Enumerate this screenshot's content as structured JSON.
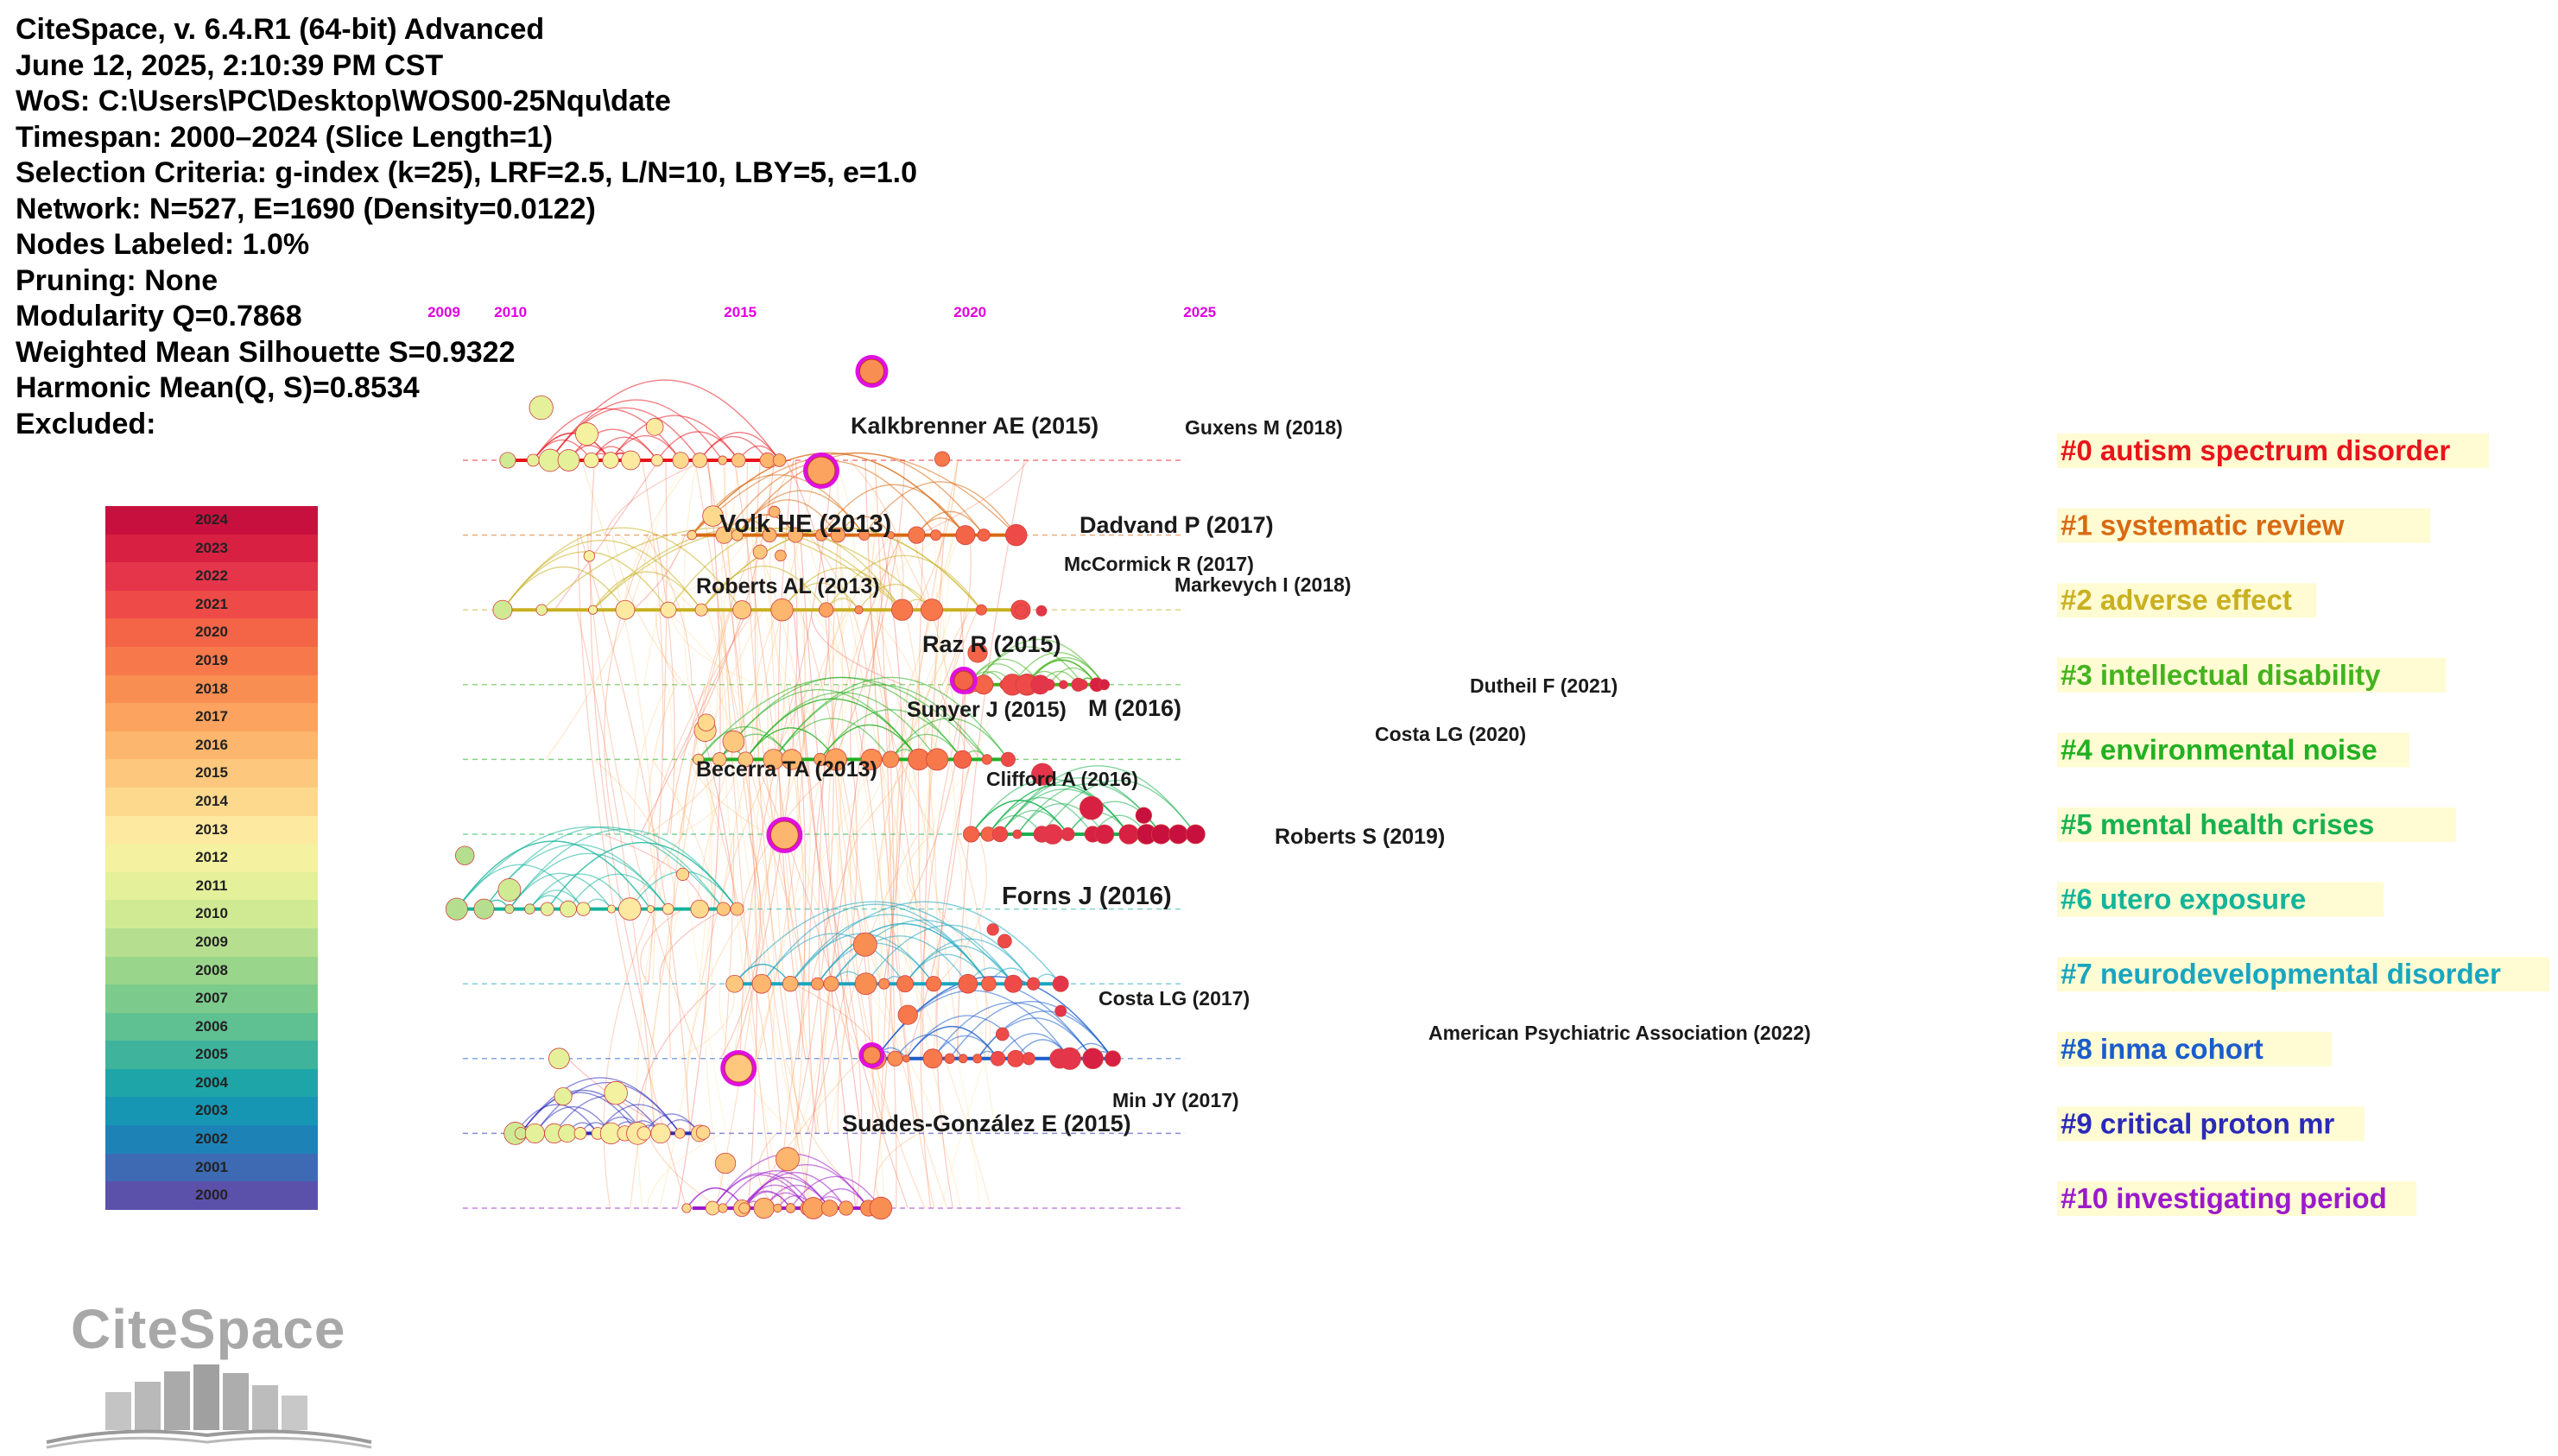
{
  "header": {
    "lines": [
      "CiteSpace, v. 6.4.R1 (64-bit) Advanced",
      "June 12, 2025, 2:10:39 PM CST",
      "WoS: C:\\Users\\PC\\Desktop\\WOS00-25Nqu\\date",
      "Timespan: 2000–2024 (Slice Length=1)",
      "Selection Criteria: g-index (k=25), LRF=2.5, L/N=10, LBY=5, e=1.0",
      "Network: N=527, E=1690 (Density=0.0122)",
      "Nodes Labeled: 1.0%",
      "Pruning: None",
      "Modularity Q=0.7868",
      "Weighted Mean Silhouette S=0.9322",
      "Harmonic Mean(Q, S)=0.8534",
      "Excluded:"
    ]
  },
  "timeline": {
    "year_ticks": [
      "2009",
      "2010",
      "2015",
      "2020",
      "2025"
    ],
    "year_range": [
      2009,
      2025
    ],
    "clusters": [
      {
        "id": "#0",
        "label": "#0 autism spectrum disorder",
        "color": "#e8141b",
        "start": 2010,
        "end": 2016
      },
      {
        "id": "#1",
        "label": "#1 systematic review",
        "color": "#d86a12",
        "start": 2014,
        "end": 2021
      },
      {
        "id": "#2",
        "label": "#2 adverse effect",
        "color": "#c9b020",
        "start": 2010,
        "end": 2021
      },
      {
        "id": "#3",
        "label": "#3 intellectual disability",
        "color": "#44b31e",
        "start": 2020,
        "end": 2023
      },
      {
        "id": "#4",
        "label": "#4 environmental noise",
        "color": "#22b022",
        "start": 2014,
        "end": 2021
      },
      {
        "id": "#5",
        "label": "#5 mental health crises",
        "color": "#17b14f",
        "start": 2020,
        "end": 2025
      },
      {
        "id": "#6",
        "label": "#6 utero exposure",
        "color": "#13b49a",
        "start": 2009,
        "end": 2015
      },
      {
        "id": "#7",
        "label": "#7 neurodevelopmental disorder",
        "color": "#1aa5c0",
        "start": 2015,
        "end": 2022
      },
      {
        "id": "#8",
        "label": "#8 inma cohort",
        "color": "#1a5ccc",
        "start": 2018,
        "end": 2023
      },
      {
        "id": "#9",
        "label": "#9 critical proton mr",
        "color": "#2a2ab8",
        "start": 2010,
        "end": 2014
      },
      {
        "id": "#10",
        "label": "#10 investigating period",
        "color": "#9a1acc",
        "start": 2014,
        "end": 2018
      }
    ],
    "node_labels": [
      {
        "text": "Kalkbrenner AE (2015)",
        "year": 2015,
        "cluster": 0
      },
      {
        "text": "Guxens M (2018)",
        "year": 2018,
        "cluster": 0
      },
      {
        "text": "Volk HE (2013)",
        "year": 2013,
        "cluster": 1
      },
      {
        "text": "Dadvand P (2017)",
        "year": 2017,
        "cluster": 1
      },
      {
        "text": "McCormick R (2017)",
        "year": 2017,
        "cluster": 2
      },
      {
        "text": "Roberts AL (2013)",
        "year": 2013,
        "cluster": 2
      },
      {
        "text": "Markevych I (2018)",
        "year": 2018,
        "cluster": 2
      },
      {
        "text": "Raz R (2015)",
        "year": 2015,
        "cluster": 3
      },
      {
        "text": "Dutheil F (2021)",
        "year": 2021,
        "cluster": 3
      },
      {
        "text": "Sunyer J (2015)",
        "year": 2015,
        "cluster": 4
      },
      {
        "text": "M (2016)",
        "year": 2016,
        "cluster": 4
      },
      {
        "text": "Costa LG (2020)",
        "year": 2020,
        "cluster": 4
      },
      {
        "text": "Becerra TA (2013)",
        "year": 2013,
        "cluster": 4
      },
      {
        "text": "Clifford A (2016)",
        "year": 2016,
        "cluster": 5
      },
      {
        "text": "Roberts S (2019)",
        "year": 2019,
        "cluster": 5
      },
      {
        "text": "Forns J (2016)",
        "year": 2016,
        "cluster": 6
      },
      {
        "text": "Costa LG (2017)",
        "year": 2017,
        "cluster": 8
      },
      {
        "text": "American Psychiatric Association (2022)",
        "year": 2022,
        "cluster": 8
      },
      {
        "text": "Min JY (2017)",
        "year": 2017,
        "cluster": 9
      },
      {
        "text": "Suades-González E (2015)",
        "year": 2015,
        "cluster": 9
      }
    ]
  },
  "legend": {
    "years": [
      "2024",
      "2023",
      "2022",
      "2021",
      "2020",
      "2019",
      "2018",
      "2017",
      "2016",
      "2015",
      "2014",
      "2013",
      "2012",
      "2011",
      "2010",
      "2009",
      "2008",
      "2007",
      "2006",
      "2005",
      "2004",
      "2003",
      "2002",
      "2001",
      "2000"
    ],
    "colors": [
      "#c8103e",
      "#d82043",
      "#e5354a",
      "#ee4b48",
      "#f46447",
      "#f7794b",
      "#f98e53",
      "#fba35f",
      "#fcb66d",
      "#fdc87d",
      "#fdd98e",
      "#fde9a0",
      "#f4f1a0",
      "#e4f09a",
      "#d0ea94",
      "#b5df8f",
      "#99d58a",
      "#7dcb8c",
      "#5fc092",
      "#3fb39b",
      "#1ea5a8",
      "#1696b3",
      "#1d83b7",
      "#3d6ab3",
      "#5b51aa"
    ]
  },
  "logo": {
    "text": "CiteSpace"
  }
}
